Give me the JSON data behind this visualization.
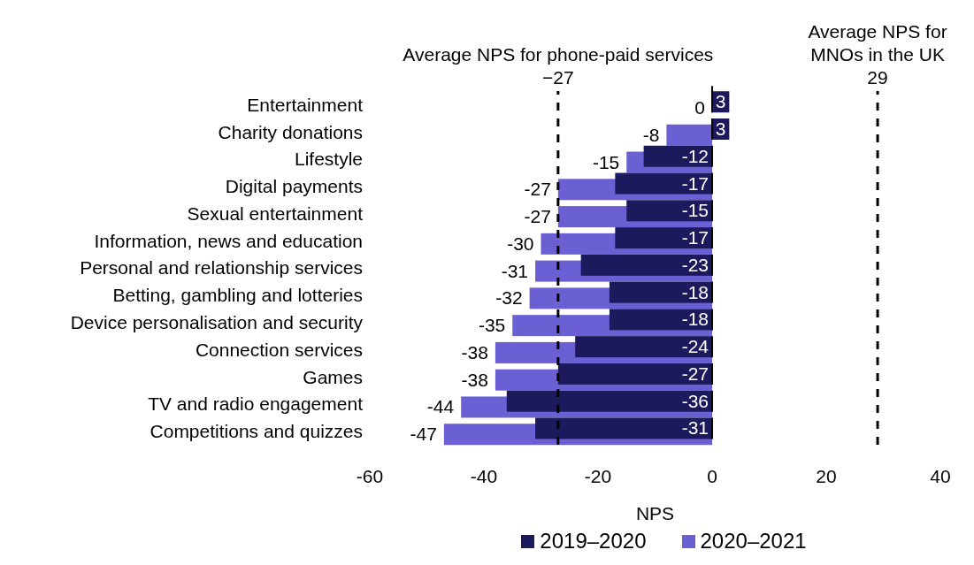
{
  "chart_data": {
    "type": "bar",
    "orientation": "horizontal",
    "xlabel": "NPS",
    "categories": [
      "Entertainment",
      "Charity donations",
      "Lifestyle",
      "Digital payments",
      "Sexual entertainment",
      "Information, news and education",
      "Personal and relationship services",
      "Betting, gambling and lotteries",
      "Device personalisation and security",
      "Connection services",
      "Games",
      "TV and radio engagement",
      "Competitions and quizzes"
    ],
    "series": [
      {
        "name": "2019–2020",
        "color": "#1c1a5c",
        "values": [
          3,
          3,
          -12,
          -17,
          -15,
          -17,
          -23,
          -18,
          -18,
          -24,
          -27,
          -36,
          -31
        ]
      },
      {
        "name": "2020–2021",
        "color": "#6a60d4",
        "values": [
          0,
          -8,
          -15,
          -27,
          -27,
          -30,
          -31,
          -32,
          -35,
          -38,
          -38,
          -44,
          -47
        ]
      }
    ],
    "xlim": [
      -60,
      40
    ],
    "xticks": [
      -60,
      -40,
      -20,
      0,
      20,
      40
    ],
    "ref_lines": [
      {
        "axis": "x",
        "value": -27,
        "label": "Average NPS for phone-paid services\n−27",
        "color": "#000000",
        "line_style": "dashed"
      },
      {
        "axis": "x",
        "value": 29,
        "label": "Average NPS for MNOs in the UK\n29",
        "color": "#000000",
        "line_style": "dashed"
      }
    ],
    "data_labels": true,
    "grid": false,
    "legend": "bottom"
  }
}
